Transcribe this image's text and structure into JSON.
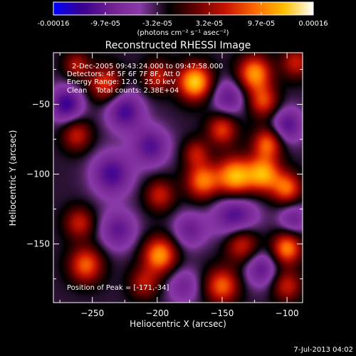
{
  "colorbar": {
    "tick_labels": [
      "-0.00016",
      "-9.7e-05",
      "-3.2e-05",
      "3.2e-05",
      "9.7e-05",
      "0.00016"
    ],
    "range": [
      -0.00016,
      0.00016
    ],
    "unit_label": "(photons cm⁻² s⁻¹ asec⁻²)",
    "colors": [
      "#0000ff",
      "#3a0090",
      "#702090",
      "#8a3aa8",
      "#000000",
      "#6a0000",
      "#cc1500",
      "#ff6a00",
      "#ffc000",
      "#ffffff"
    ]
  },
  "chart_data": {
    "type": "heatmap",
    "title": "Reconstructed RHESSI Image",
    "xlabel": "Heliocentric X (arcsec)",
    "ylabel": "Heliocentric Y (arcsec)",
    "xlim": [
      -280,
      -88
    ],
    "ylim": [
      -192,
      -13
    ],
    "x_ticks": [
      -250,
      -200,
      -150,
      -100
    ],
    "y_ticks": [
      -50,
      -100,
      -150
    ],
    "x_tick_labels": [
      "−250",
      "−200",
      "−150",
      "−100"
    ],
    "y_tick_labels": [
      "−50",
      "−100",
      "−150"
    ],
    "annotations": [
      "2-Dec-2005 09:43:24.000 to 09:47:58.000",
      "Detectors: 4F 5F 6F 7F 8F, Att 0",
      "Energy Range: 12.0 - 25.0 keV",
      "Clean    Total counts: 2.38E+04"
    ],
    "peak_label": "Position of Peak = [-171,-34]",
    "peak": [
      -171,
      -34
    ],
    "sources": [
      {
        "x": -171,
        "y": -34,
        "amp": 1.0,
        "s": 9
      },
      {
        "x": -125,
        "y": -28,
        "amp": 0.85,
        "s": 9
      },
      {
        "x": -118,
        "y": -48,
        "amp": 0.6,
        "s": 8
      },
      {
        "x": -93,
        "y": -20,
        "amp": 0.5,
        "s": 8
      },
      {
        "x": -200,
        "y": -30,
        "amp": 0.5,
        "s": 8
      },
      {
        "x": -240,
        "y": -35,
        "amp": 0.6,
        "s": 9
      },
      {
        "x": -262,
        "y": -22,
        "amp": 0.45,
        "s": 7
      },
      {
        "x": -150,
        "y": -68,
        "amp": 0.6,
        "s": 8
      },
      {
        "x": -115,
        "y": -78,
        "amp": 0.7,
        "s": 8
      },
      {
        "x": -262,
        "y": -72,
        "amp": 0.5,
        "s": 8
      },
      {
        "x": -170,
        "y": -85,
        "amp": 0.45,
        "s": 7
      },
      {
        "x": -140,
        "y": -102,
        "amp": 0.95,
        "s": 10
      },
      {
        "x": -118,
        "y": -100,
        "amp": 0.85,
        "s": 9
      },
      {
        "x": -165,
        "y": -105,
        "amp": 0.75,
        "s": 9
      },
      {
        "x": -100,
        "y": -110,
        "amp": 0.7,
        "s": 8
      },
      {
        "x": -198,
        "y": -115,
        "amp": 0.5,
        "s": 8
      },
      {
        "x": -260,
        "y": -135,
        "amp": 0.5,
        "s": 8
      },
      {
        "x": -198,
        "y": -158,
        "amp": 0.85,
        "s": 9
      },
      {
        "x": -135,
        "y": -150,
        "amp": 0.6,
        "s": 9
      },
      {
        "x": -100,
        "y": -153,
        "amp": 0.8,
        "s": 8
      },
      {
        "x": -255,
        "y": -165,
        "amp": 0.7,
        "s": 9
      },
      {
        "x": -210,
        "y": -178,
        "amp": 0.45,
        "s": 8
      },
      {
        "x": -150,
        "y": -180,
        "amp": 0.7,
        "s": 9
      },
      {
        "x": -100,
        "y": -180,
        "amp": 0.5,
        "s": 8
      },
      {
        "x": -225,
        "y": -55,
        "amp": -0.55,
        "s": 10
      },
      {
        "x": -270,
        "y": -50,
        "amp": -0.6,
        "s": 9
      },
      {
        "x": -205,
        "y": -80,
        "amp": -0.5,
        "s": 10
      },
      {
        "x": -235,
        "y": -100,
        "amp": -0.55,
        "s": 11
      },
      {
        "x": -145,
        "y": -45,
        "amp": -0.45,
        "s": 9
      },
      {
        "x": -100,
        "y": -65,
        "amp": -0.5,
        "s": 9
      },
      {
        "x": -140,
        "y": -130,
        "amp": -0.55,
        "s": 12
      },
      {
        "x": -230,
        "y": -140,
        "amp": -0.45,
        "s": 10
      },
      {
        "x": -175,
        "y": -140,
        "amp": -0.4,
        "s": 9
      },
      {
        "x": -120,
        "y": -168,
        "amp": -0.45,
        "s": 9
      },
      {
        "x": -180,
        "y": -180,
        "amp": -0.35,
        "s": 9
      },
      {
        "x": -95,
        "y": -132,
        "amp": -0.4,
        "s": 8
      }
    ]
  },
  "footer": {
    "timestamp": "7-Jul-2013 04:02"
  }
}
